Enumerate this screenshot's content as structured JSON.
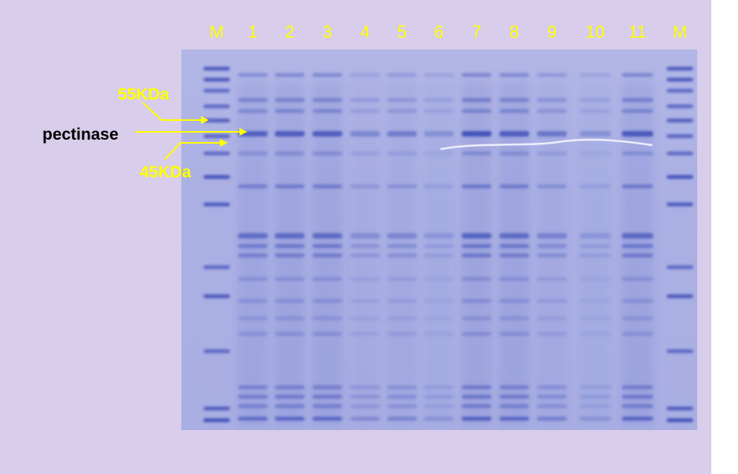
{
  "lanes": [
    "M",
    "1",
    "2",
    "3",
    "4",
    "5",
    "6",
    "7",
    "8",
    "9",
    "10",
    "11",
    "M"
  ],
  "lane_intensity": [
    1.0,
    0.85,
    0.9,
    0.9,
    0.45,
    0.55,
    0.35,
    1.0,
    0.9,
    0.6,
    0.35,
    0.95,
    1.0
  ],
  "annotations": {
    "upper_marker": "55KDa",
    "lower_marker": "45KDa",
    "protein": "pectinase"
  },
  "colors": {
    "background": "#d8cdea",
    "gel": "#abb0e4",
    "band": "#3f4fb8",
    "label": "#ffff00",
    "protein_label": "#000000"
  }
}
